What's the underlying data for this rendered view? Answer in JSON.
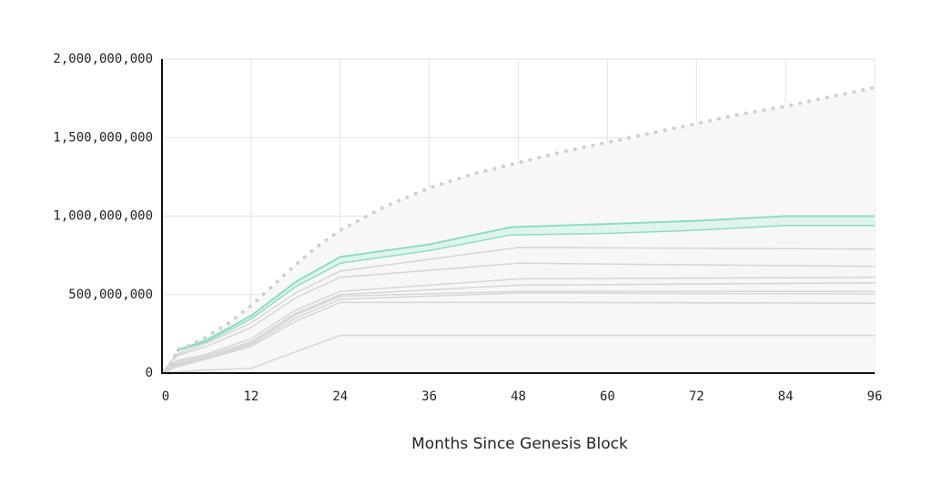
{
  "chart_data": {
    "type": "line",
    "title": "",
    "xlabel": "Months Since Genesis Block",
    "ylabel": "",
    "xlim": [
      0,
      96
    ],
    "ylim": [
      0,
      2000000000
    ],
    "x_ticks": [
      0,
      12,
      24,
      36,
      48,
      60,
      72,
      84,
      96
    ],
    "x_tick_labels": [
      "0",
      "12",
      "24",
      "36",
      "48",
      "60",
      "72",
      "84",
      "96"
    ],
    "y_ticks": [
      0,
      500000000,
      1000000000,
      1500000000,
      2000000000
    ],
    "y_tick_labels": [
      "0",
      "500,000,000",
      "1,000,000,000",
      "1,500,000,000",
      "2,000,000,000"
    ],
    "grid": true,
    "dotted_series": {
      "style": "dotted",
      "x": [
        1,
        2,
        3,
        6,
        9,
        12,
        15,
        18,
        21,
        24,
        30,
        36,
        42,
        48,
        54,
        60,
        66,
        72,
        78,
        84,
        90,
        96
      ],
      "y": [
        0,
        150000000,
        160000000,
        230000000,
        320000000,
        430000000,
        560000000,
        690000000,
        810000000,
        910000000,
        1060000000,
        1180000000,
        1270000000,
        1340000000,
        1410000000,
        1470000000,
        1530000000,
        1590000000,
        1650000000,
        1700000000,
        1760000000,
        1820000000
      ]
    },
    "highlight_band": {
      "color": "#8fdcc0",
      "x": [
        2,
        6,
        12,
        18,
        24,
        36,
        47,
        60,
        72,
        84,
        96
      ],
      "upper": [
        145000000,
        210000000,
        365000000,
        580000000,
        740000000,
        820000000,
        930000000,
        950000000,
        970000000,
        1000000000,
        1000000000
      ],
      "lower": [
        140000000,
        200000000,
        345000000,
        550000000,
        700000000,
        780000000,
        880000000,
        890000000,
        910000000,
        940000000,
        940000000
      ]
    },
    "series": [
      {
        "x": [
          0,
          2,
          6,
          12,
          18,
          24,
          48,
          96
        ],
        "y": [
          0,
          120000000,
          190000000,
          320000000,
          510000000,
          650000000,
          800000000,
          790000000
        ]
      },
      {
        "x": [
          0,
          2,
          6,
          12,
          18,
          24,
          48,
          96
        ],
        "y": [
          0,
          110000000,
          170000000,
          290000000,
          480000000,
          610000000,
          700000000,
          680000000
        ]
      },
      {
        "x": [
          0,
          2,
          6,
          12,
          18,
          24,
          48,
          96
        ],
        "y": [
          0,
          80000000,
          120000000,
          220000000,
          400000000,
          520000000,
          600000000,
          610000000
        ]
      },
      {
        "x": [
          0,
          2,
          6,
          12,
          18,
          24,
          48,
          96
        ],
        "y": [
          0,
          70000000,
          110000000,
          200000000,
          380000000,
          500000000,
          560000000,
          575000000
        ]
      },
      {
        "x": [
          0,
          2,
          6,
          12,
          18,
          24,
          48,
          96
        ],
        "y": [
          0,
          60000000,
          100000000,
          190000000,
          370000000,
          490000000,
          520000000,
          520000000
        ]
      },
      {
        "x": [
          0,
          2,
          6,
          12,
          18,
          24,
          48,
          96
        ],
        "y": [
          0,
          50000000,
          95000000,
          180000000,
          350000000,
          470000000,
          510000000,
          505000000
        ]
      },
      {
        "x": [
          0,
          2,
          6,
          12,
          18,
          24,
          48,
          96
        ],
        "y": [
          0,
          40000000,
          90000000,
          170000000,
          330000000,
          450000000,
          450000000,
          445000000
        ]
      },
      {
        "x": [
          0,
          6,
          12,
          24,
          48,
          96
        ],
        "y": [
          0,
          20000000,
          30000000,
          240000000,
          240000000,
          240000000
        ]
      }
    ],
    "colors": {
      "grid": "#e3e3e3",
      "axis": "#111111",
      "series": "#d6d6d6",
      "fill": "#f7f7f7",
      "dotted": "#cfcfcf",
      "highlight_line": "#8fdcc0",
      "highlight_fill": "#dff4ec"
    }
  }
}
